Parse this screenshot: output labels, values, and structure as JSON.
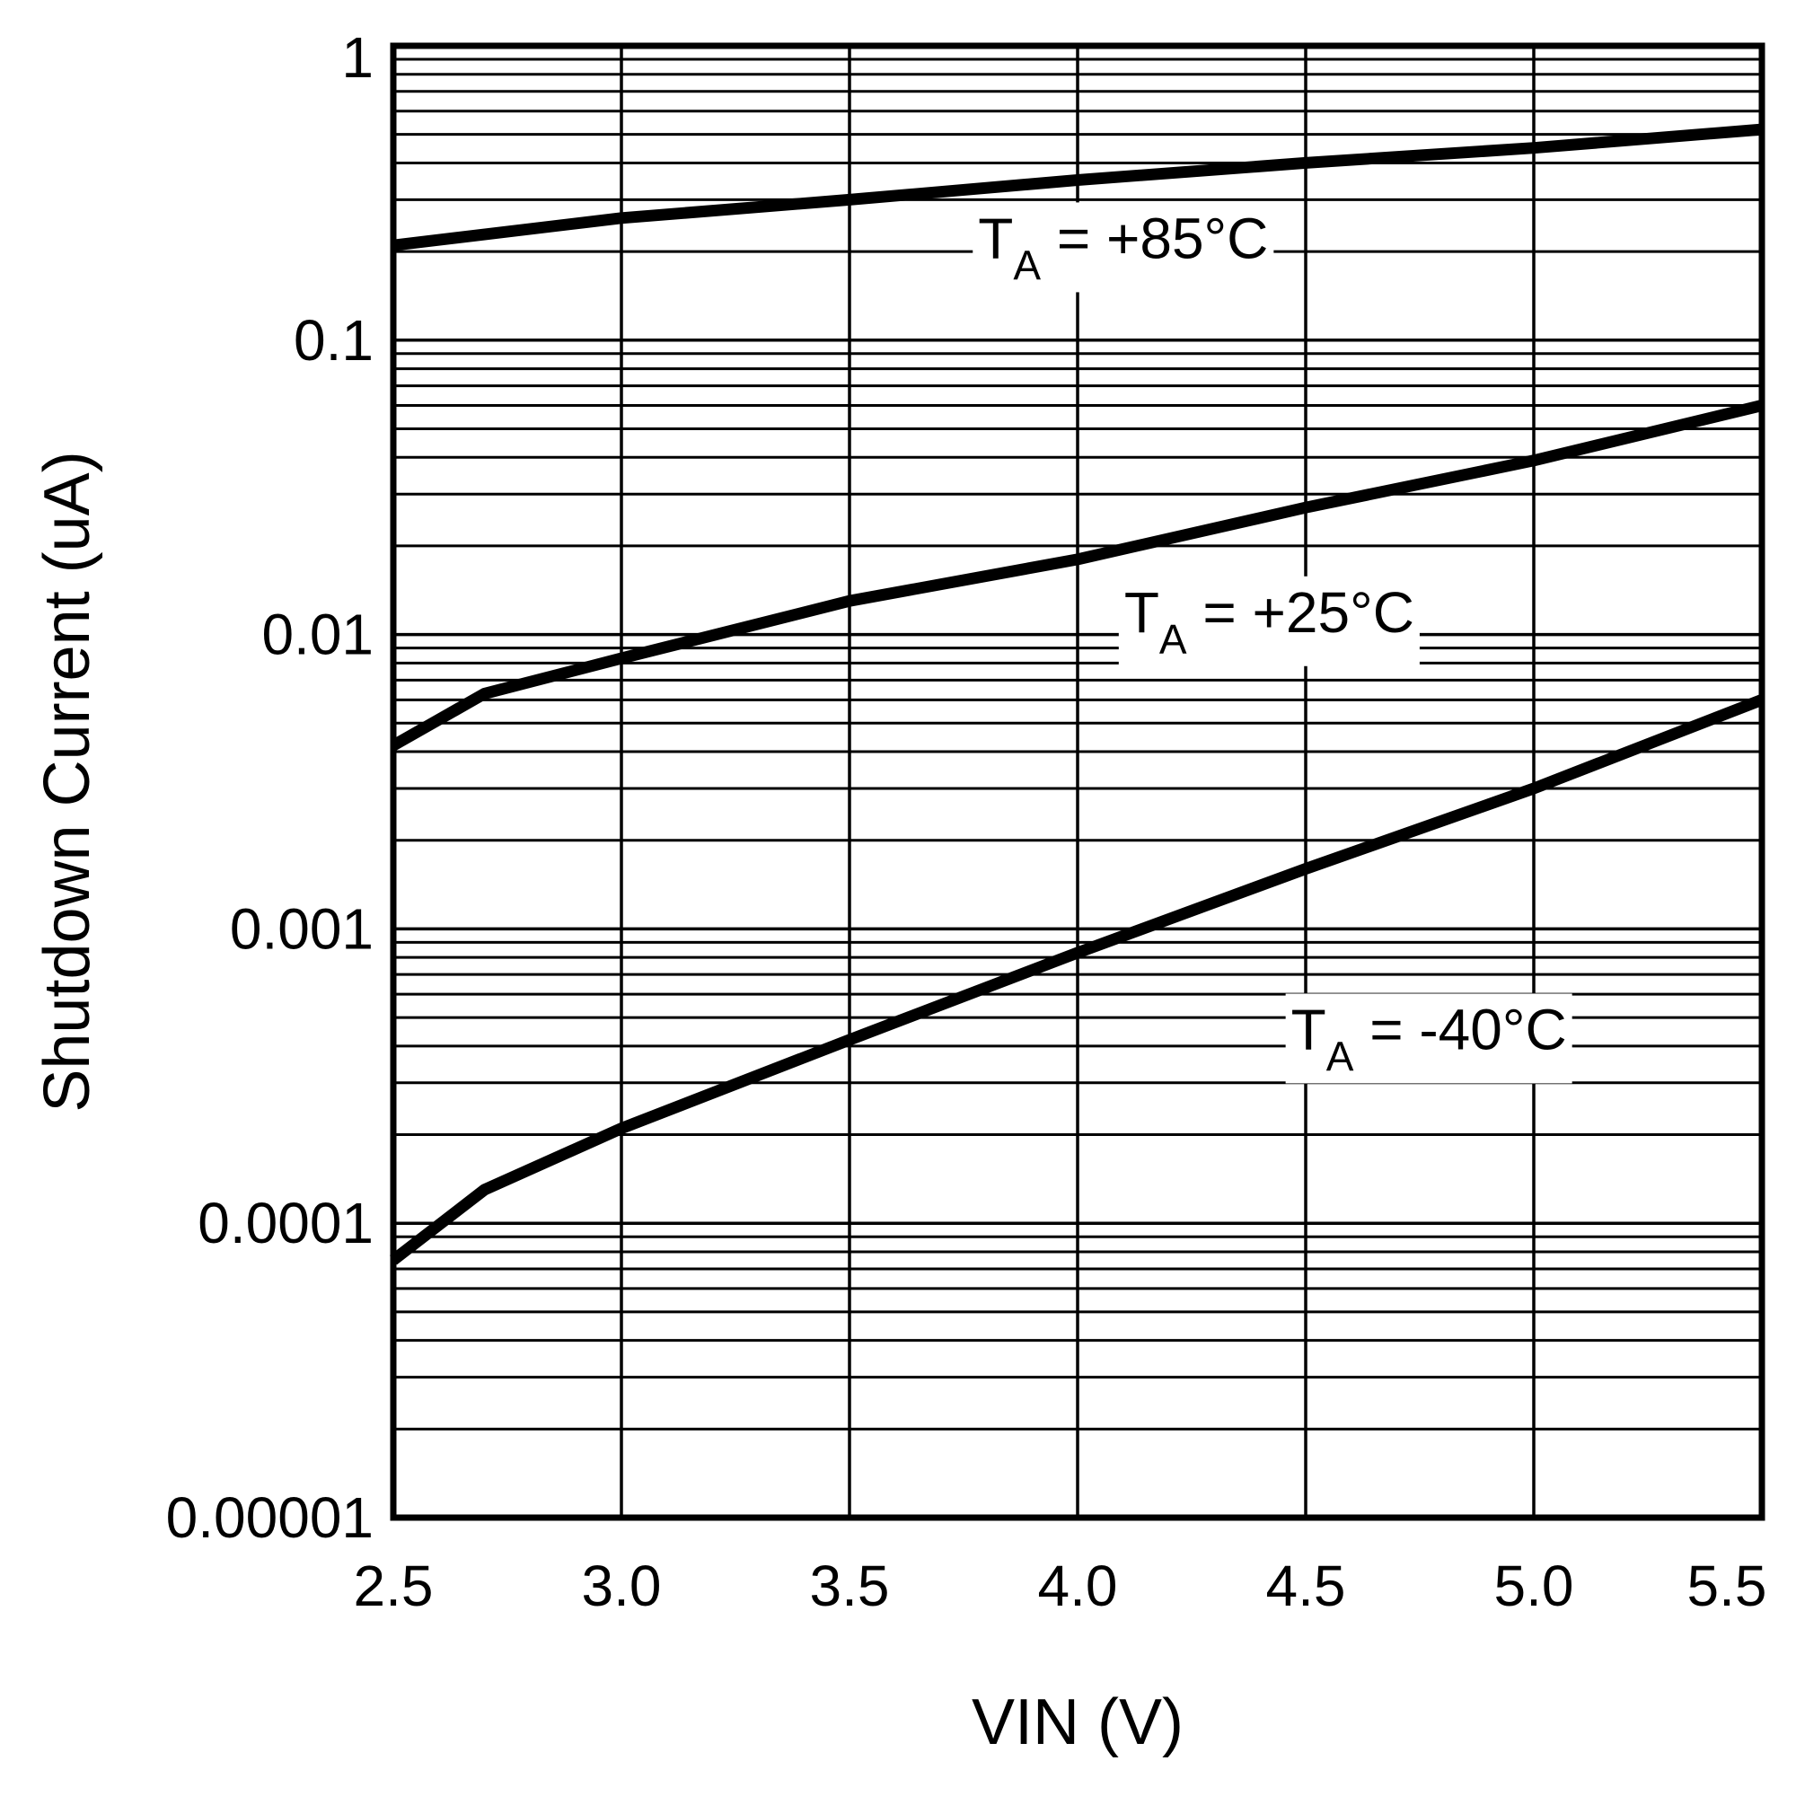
{
  "colors": {
    "line": "#000000",
    "grid": "#000000",
    "background": "#ffffff"
  },
  "chart_data": {
    "type": "line",
    "title": "",
    "xlabel": "VIN (V)",
    "ylabel": "Shutdown Current (uA)",
    "xlim": [
      2.5,
      5.5
    ],
    "ylim": [
      1e-05,
      1
    ],
    "yscale": "log",
    "grid": true,
    "x_ticks": [
      2.5,
      3.0,
      3.5,
      4.0,
      4.5,
      5.0,
      5.5
    ],
    "x_tick_labels": [
      "2.5",
      "3.0",
      "3.5",
      "4.0",
      "4.5",
      "5.0",
      "5.5"
    ],
    "y_ticks": [
      1e-05,
      0.0001,
      0.001,
      0.01,
      0.1,
      1
    ],
    "y_tick_labels": [
      "0.00001",
      "0.0001",
      "0.001",
      "0.01",
      "0.1",
      "1"
    ],
    "series": [
      {
        "name": "TA = +85°C",
        "label_main": "T",
        "label_sub": "A",
        "label_rest": " = +85°C",
        "label_at": [
          4.1,
          0.19
        ],
        "x": [
          2.5,
          3.0,
          3.5,
          4.0,
          4.5,
          5.0,
          5.5
        ],
        "values": [
          0.21,
          0.26,
          0.3,
          0.35,
          0.4,
          0.45,
          0.52
        ]
      },
      {
        "name": "TA = +25°C",
        "label_main": "T",
        "label_sub": "A",
        "label_rest": " = +25°C",
        "label_at": [
          4.42,
          0.0102
        ],
        "x": [
          2.5,
          2.7,
          3.0,
          3.5,
          4.0,
          4.5,
          5.0,
          5.5
        ],
        "values": [
          0.0042,
          0.0063,
          0.0083,
          0.013,
          0.018,
          0.027,
          0.039,
          0.06
        ]
      },
      {
        "name": "TA = -40°C",
        "label_main": "T",
        "label_sub": "A",
        "label_rest": " = -40°C",
        "label_at": [
          4.77,
          0.00039
        ],
        "x": [
          2.5,
          2.7,
          3.0,
          3.5,
          4.0,
          4.5,
          5.0,
          5.5
        ],
        "values": [
          7.5e-05,
          0.00013,
          0.00021,
          0.00042,
          0.00083,
          0.0016,
          0.003,
          0.006
        ]
      }
    ]
  }
}
